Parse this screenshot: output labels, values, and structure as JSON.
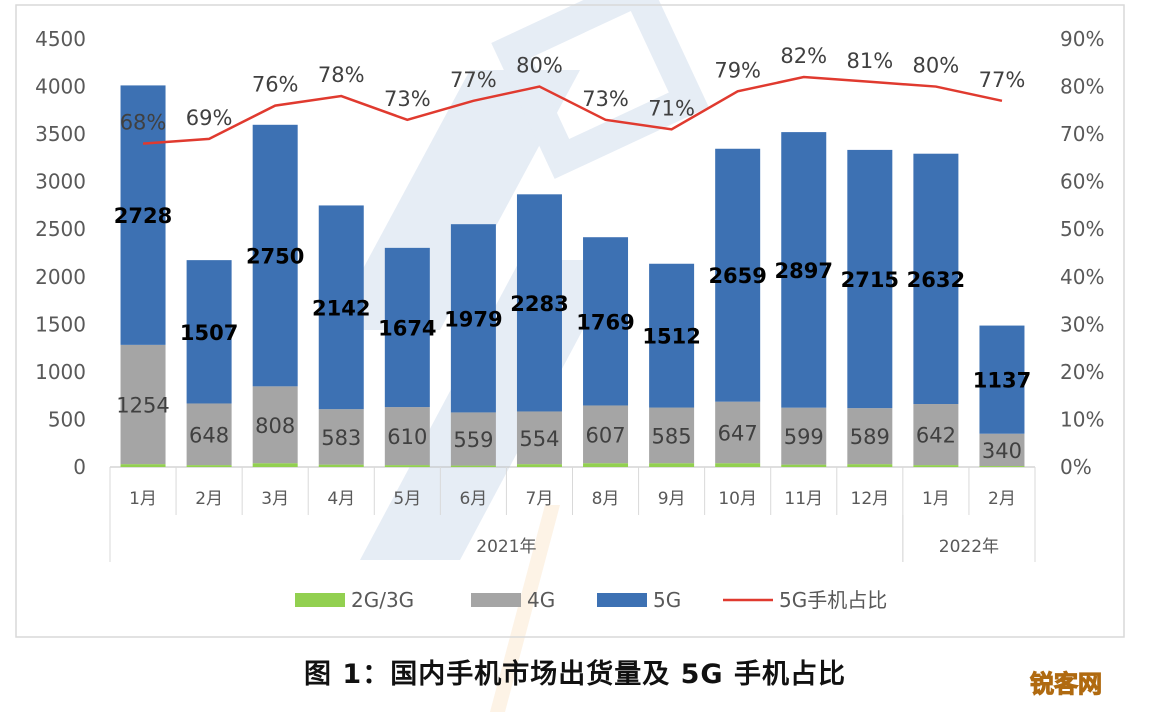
{
  "chart_data": {
    "type": "bar",
    "stacked": true,
    "categories": [
      "1月",
      "2月",
      "3月",
      "4月",
      "5月",
      "6月",
      "7月",
      "8月",
      "9月",
      "10月",
      "11月",
      "12月",
      "1月",
      "2月"
    ],
    "category_groups": [
      {
        "label": "2021年",
        "start": 0,
        "end": 11
      },
      {
        "label": "2022年",
        "start": 12,
        "end": 13
      }
    ],
    "series": [
      {
        "name": "2G/3G",
        "color": "#92d050",
        "values": [
          30,
          20,
          40,
          25,
          20,
          15,
          30,
          40,
          40,
          40,
          25,
          30,
          20,
          10
        ]
      },
      {
        "name": "4G",
        "color": "#a5a5a5",
        "values": [
          1254,
          648,
          808,
          583,
          610,
          559,
          554,
          607,
          585,
          647,
          599,
          589,
          642,
          340
        ]
      },
      {
        "name": "5G",
        "color": "#3d71b3",
        "values": [
          2728,
          1507,
          2750,
          2142,
          1674,
          1979,
          2283,
          1769,
          1512,
          2659,
          2897,
          2715,
          2632,
          1137
        ]
      }
    ],
    "line_series": {
      "name": "5G手机占比",
      "color": "#e03a2f",
      "axis": "right",
      "values": [
        68,
        69,
        76,
        78,
        73,
        77,
        80,
        73,
        71,
        79,
        82,
        81,
        80,
        77
      ],
      "labels": [
        "68%",
        "69%",
        "76%",
        "78%",
        "73%",
        "77%",
        "80%",
        "73%",
        "71%",
        "79%",
        "82%",
        "81%",
        "80%",
        "77%"
      ]
    },
    "y_left": {
      "min": 0,
      "max": 4500,
      "ticks": [
        "0",
        "500",
        "1000",
        "1500",
        "2000",
        "2500",
        "3000",
        "3500",
        "4000",
        "4500"
      ]
    },
    "y_right": {
      "min": 0,
      "max": 90,
      "ticks": [
        "0%",
        "10%",
        "20%",
        "30%",
        "40%",
        "50%",
        "60%",
        "70%",
        "80%",
        "90%"
      ]
    },
    "grid": false,
    "legend_position": "bottom",
    "title": "图 1：国内手机市场出货量及 5G 手机占比"
  },
  "watermark": "锐客网"
}
